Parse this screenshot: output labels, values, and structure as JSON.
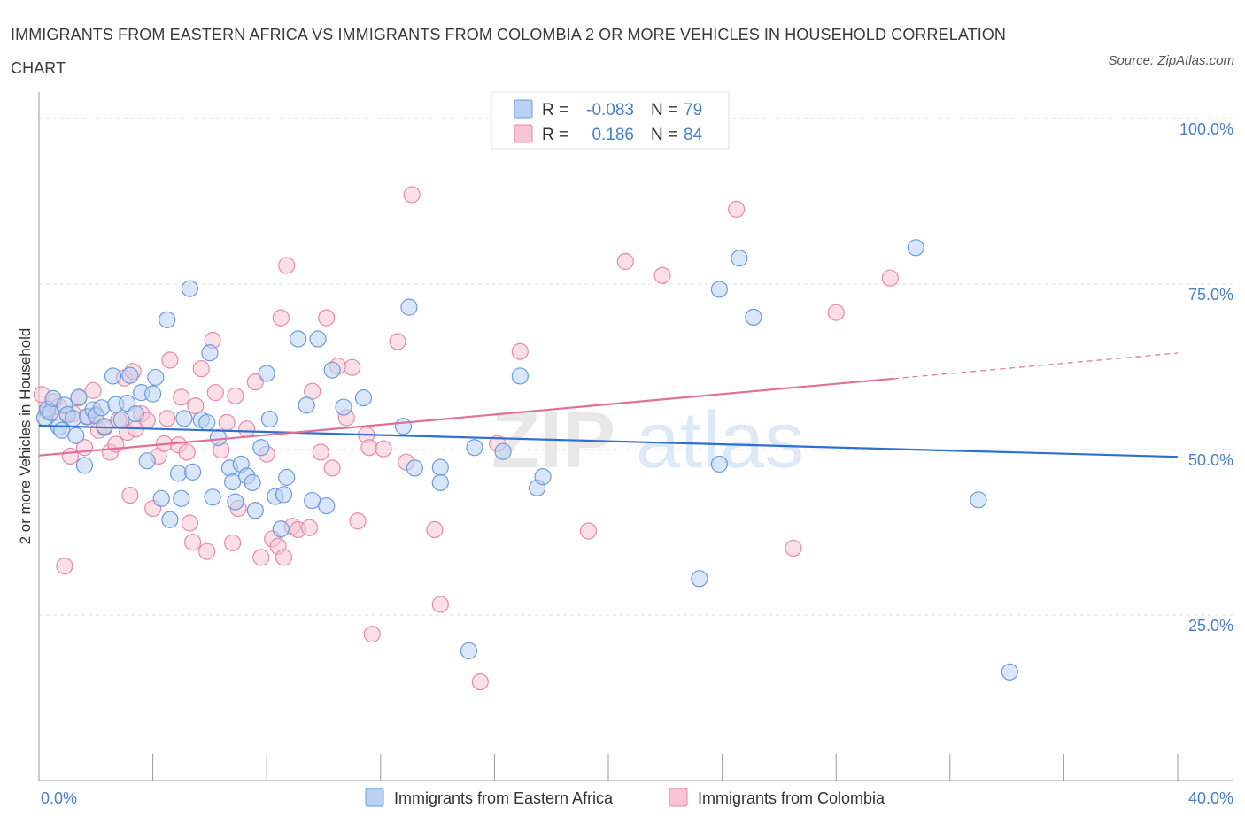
{
  "title": "IMMIGRANTS FROM EASTERN AFRICA VS IMMIGRANTS FROM COLOMBIA 2 OR MORE VEHICLES IN HOUSEHOLD CORRELATION CHART",
  "source": "Source: ZipAtlas.com",
  "watermark": {
    "zip": "ZIP",
    "atlas": "atlas"
  },
  "colors": {
    "blue": "#6c9be0",
    "blue_fill": "#b9d1f3",
    "blue_line": "#2f6fd0",
    "pink": "#e98aa9",
    "pink_fill": "#f6c4d4",
    "pink_line": "#e07098",
    "tick_text": "#4a7fc8",
    "grid": "#dddddd"
  },
  "legend": {
    "series": [
      {
        "r_label": "R =",
        "r_value": "-0.083",
        "n_label": "N =",
        "n_value": "79"
      },
      {
        "r_label": "R =",
        "r_value": "0.186",
        "n_label": "N =",
        "n_value": "84"
      }
    ]
  },
  "chart_data": {
    "type": "scatter",
    "title": "IMMIGRANTS FROM EASTERN AFRICA VS IMMIGRANTS FROM COLOMBIA 2 OR MORE VEHICLES IN HOUSEHOLD CORRELATION CHART",
    "xlabel": "",
    "ylabel": "2 or more Vehicles in Household",
    "xlim": [
      0,
      42
    ],
    "ylim": [
      0,
      104
    ],
    "x_tick_labels": [
      "0.0%",
      "40.0%"
    ],
    "x_tick_values": [
      0,
      40
    ],
    "y_tick_labels": [
      "25.0%",
      "50.0%",
      "75.0%",
      "100.0%"
    ],
    "y_tick_values": [
      25,
      50,
      75,
      100
    ],
    "grid": true,
    "legend_position": "top-center",
    "series": [
      {
        "name": "Immigrants from Eastern Africa",
        "color": "#6c9be0",
        "trend": {
          "x": [
            0,
            40
          ],
          "y": [
            53.6,
            48.9
          ]
        },
        "points": [
          [
            0.2,
            54.8
          ],
          [
            0.3,
            56.1
          ],
          [
            0.4,
            55.6
          ],
          [
            0.5,
            57.7
          ],
          [
            0.7,
            53.4
          ],
          [
            0.8,
            52.9
          ],
          [
            0.9,
            56.7
          ],
          [
            1.0,
            55.3
          ],
          [
            1.2,
            54.7
          ],
          [
            1.3,
            52.1
          ],
          [
            1.4,
            57.9
          ],
          [
            1.6,
            47.6
          ],
          [
            1.7,
            55.0
          ],
          [
            1.9,
            56.0
          ],
          [
            2.0,
            55.1
          ],
          [
            2.2,
            56.3
          ],
          [
            2.3,
            53.5
          ],
          [
            2.6,
            61.1
          ],
          [
            2.7,
            56.8
          ],
          [
            2.9,
            54.5
          ],
          [
            3.1,
            57.0
          ],
          [
            3.2,
            61.2
          ],
          [
            3.4,
            55.4
          ],
          [
            3.6,
            58.6
          ],
          [
            3.8,
            48.3
          ],
          [
            4.0,
            58.4
          ],
          [
            4.1,
            60.9
          ],
          [
            4.3,
            42.6
          ],
          [
            4.5,
            69.6
          ],
          [
            4.6,
            39.4
          ],
          [
            4.9,
            46.4
          ],
          [
            5.0,
            42.6
          ],
          [
            5.1,
            54.7
          ],
          [
            5.3,
            74.3
          ],
          [
            5.4,
            46.6
          ],
          [
            5.7,
            54.5
          ],
          [
            5.9,
            54.1
          ],
          [
            6.0,
            64.6
          ],
          [
            6.1,
            42.8
          ],
          [
            6.3,
            51.8
          ],
          [
            6.7,
            47.2
          ],
          [
            6.8,
            45.1
          ],
          [
            6.9,
            42.1
          ],
          [
            7.1,
            47.8
          ],
          [
            7.3,
            46.0
          ],
          [
            7.5,
            45.0
          ],
          [
            7.6,
            40.8
          ],
          [
            7.8,
            50.3
          ],
          [
            8.0,
            61.5
          ],
          [
            8.1,
            54.6
          ],
          [
            8.3,
            42.9
          ],
          [
            8.5,
            38.0
          ],
          [
            8.6,
            43.2
          ],
          [
            8.7,
            45.8
          ],
          [
            9.1,
            66.7
          ],
          [
            9.4,
            56.7
          ],
          [
            9.6,
            42.3
          ],
          [
            9.8,
            66.7
          ],
          [
            10.1,
            41.5
          ],
          [
            10.3,
            62.0
          ],
          [
            10.7,
            56.4
          ],
          [
            11.4,
            57.8
          ],
          [
            12.8,
            53.5
          ],
          [
            13.0,
            71.5
          ],
          [
            13.2,
            47.2
          ],
          [
            14.1,
            47.3
          ],
          [
            14.1,
            45.0
          ],
          [
            15.1,
            19.6
          ],
          [
            15.3,
            50.3
          ],
          [
            16.3,
            49.7
          ],
          [
            16.9,
            61.1
          ],
          [
            17.5,
            44.2
          ],
          [
            17.7,
            45.9
          ],
          [
            23.2,
            30.5
          ],
          [
            23.9,
            74.2
          ],
          [
            23.9,
            47.8
          ],
          [
            24.6,
            78.9
          ],
          [
            25.1,
            70.0
          ],
          [
            30.8,
            80.5
          ],
          [
            33.0,
            42.4
          ],
          [
            34.1,
            16.4
          ]
        ]
      },
      {
        "name": "Immigrants from Colombia",
        "color": "#e98aa9",
        "trend": {
          "x": [
            0,
            30
          ],
          "y": [
            49.1,
            60.7
          ]
        },
        "points": [
          [
            0.1,
            58.3
          ],
          [
            0.3,
            55.7
          ],
          [
            0.5,
            57.2
          ],
          [
            0.7,
            56.5
          ],
          [
            0.9,
            32.4
          ],
          [
            1.0,
            55.2
          ],
          [
            1.1,
            49.0
          ],
          [
            1.2,
            55.4
          ],
          [
            1.4,
            57.8
          ],
          [
            1.6,
            50.3
          ],
          [
            1.7,
            54.9
          ],
          [
            1.9,
            58.9
          ],
          [
            2.0,
            55.3
          ],
          [
            2.1,
            52.9
          ],
          [
            2.3,
            53.3
          ],
          [
            2.5,
            49.6
          ],
          [
            2.7,
            50.8
          ],
          [
            2.8,
            54.5
          ],
          [
            3.0,
            60.8
          ],
          [
            3.1,
            52.6
          ],
          [
            3.2,
            43.1
          ],
          [
            3.3,
            61.8
          ],
          [
            3.4,
            53.1
          ],
          [
            3.6,
            55.4
          ],
          [
            3.8,
            54.4
          ],
          [
            4.0,
            41.1
          ],
          [
            4.2,
            49.0
          ],
          [
            4.4,
            50.9
          ],
          [
            4.5,
            54.7
          ],
          [
            4.6,
            63.5
          ],
          [
            4.9,
            50.7
          ],
          [
            5.0,
            57.9
          ],
          [
            5.2,
            49.6
          ],
          [
            5.3,
            38.9
          ],
          [
            5.4,
            36.0
          ],
          [
            5.5,
            56.6
          ],
          [
            5.7,
            62.2
          ],
          [
            5.9,
            34.6
          ],
          [
            6.1,
            66.5
          ],
          [
            6.2,
            58.6
          ],
          [
            6.4,
            49.9
          ],
          [
            6.6,
            54.1
          ],
          [
            6.8,
            35.9
          ],
          [
            6.9,
            58.1
          ],
          [
            7.0,
            41.1
          ],
          [
            7.3,
            53.1
          ],
          [
            7.6,
            60.2
          ],
          [
            7.8,
            33.7
          ],
          [
            8.0,
            49.3
          ],
          [
            8.2,
            36.5
          ],
          [
            8.4,
            35.4
          ],
          [
            8.5,
            69.9
          ],
          [
            8.6,
            33.7
          ],
          [
            8.7,
            77.8
          ],
          [
            8.9,
            38.4
          ],
          [
            9.1,
            37.9
          ],
          [
            9.5,
            38.2
          ],
          [
            9.6,
            58.8
          ],
          [
            9.9,
            49.6
          ],
          [
            10.1,
            69.9
          ],
          [
            10.3,
            47.2
          ],
          [
            10.5,
            62.6
          ],
          [
            10.8,
            54.8
          ],
          [
            11.0,
            62.4
          ],
          [
            11.2,
            39.2
          ],
          [
            11.5,
            52.2
          ],
          [
            11.6,
            50.3
          ],
          [
            11.7,
            22.1
          ],
          [
            12.1,
            50.1
          ],
          [
            12.6,
            66.3
          ],
          [
            12.9,
            48.1
          ],
          [
            13.1,
            88.5
          ],
          [
            13.9,
            37.9
          ],
          [
            14.1,
            26.6
          ],
          [
            15.5,
            14.9
          ],
          [
            16.1,
            50.9
          ],
          [
            16.9,
            64.8
          ],
          [
            19.3,
            37.7
          ],
          [
            20.6,
            78.4
          ],
          [
            21.9,
            76.3
          ],
          [
            24.5,
            86.3
          ],
          [
            26.5,
            35.1
          ],
          [
            28.0,
            70.7
          ],
          [
            29.9,
            75.9
          ]
        ]
      }
    ]
  }
}
